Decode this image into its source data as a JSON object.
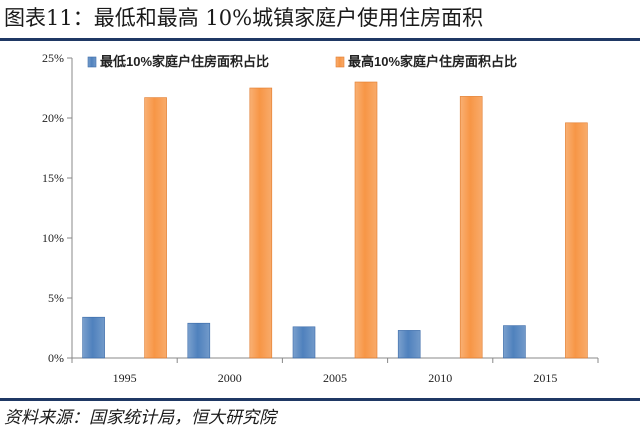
{
  "title": "图表11：最低和最高 10%城镇家庭户使用住房面积",
  "source": "资料来源：国家统计局，恒大研究院",
  "colors": {
    "low": "#4f81bd",
    "high": "#f79646",
    "rule": "#1f3864"
  },
  "chart_data": {
    "type": "bar",
    "categories": [
      "1995",
      "2000",
      "2005",
      "2010",
      "2015"
    ],
    "series": [
      {
        "name": "最低10%家庭户住房面积占比",
        "values": [
          3.4,
          2.9,
          2.6,
          2.3,
          2.7
        ]
      },
      {
        "name": "最高10%家庭户住房面积占比",
        "values": [
          21.7,
          22.5,
          23.0,
          21.8,
          19.6
        ]
      }
    ],
    "ylim": [
      0,
      25
    ],
    "yticks": [
      "0%",
      "5%",
      "10%",
      "15%",
      "20%",
      "25%"
    ],
    "legend_position": "top",
    "grid": false
  }
}
